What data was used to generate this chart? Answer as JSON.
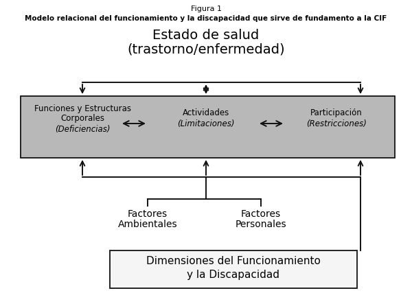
{
  "fig_title": "Figura 1",
  "subtitle": "Modelo relacional del funcionamiento y la discapacidad que sirve de fundamento a la CIF",
  "health_state_line1": "Estado de salud",
  "health_state_line2": "(trastorno/enfermedad)",
  "box1_line1": "Funciones y Estructuras",
  "box1_line2": "Corporales",
  "box1_line3": "(Deficiencias)",
  "box2_line1": "Actividades",
  "box2_line2": "(Limitaciones)",
  "box3_line1": "Participación",
  "box3_line2": "(Restricciones)",
  "factor1_line1": "Factores",
  "factor1_line2": "Ambientales",
  "factor2_line1": "Factores",
  "factor2_line2": "Personales",
  "dim_line1": "Dimensiones del Funcionamiento",
  "dim_line2": "y la Discapacidad",
  "bg_color": "#ffffff",
  "gray_box_color": "#b8b8b8",
  "dim_box_color": "#f5f5f5",
  "text_color": "#000000",
  "arrow_color": "#111111"
}
